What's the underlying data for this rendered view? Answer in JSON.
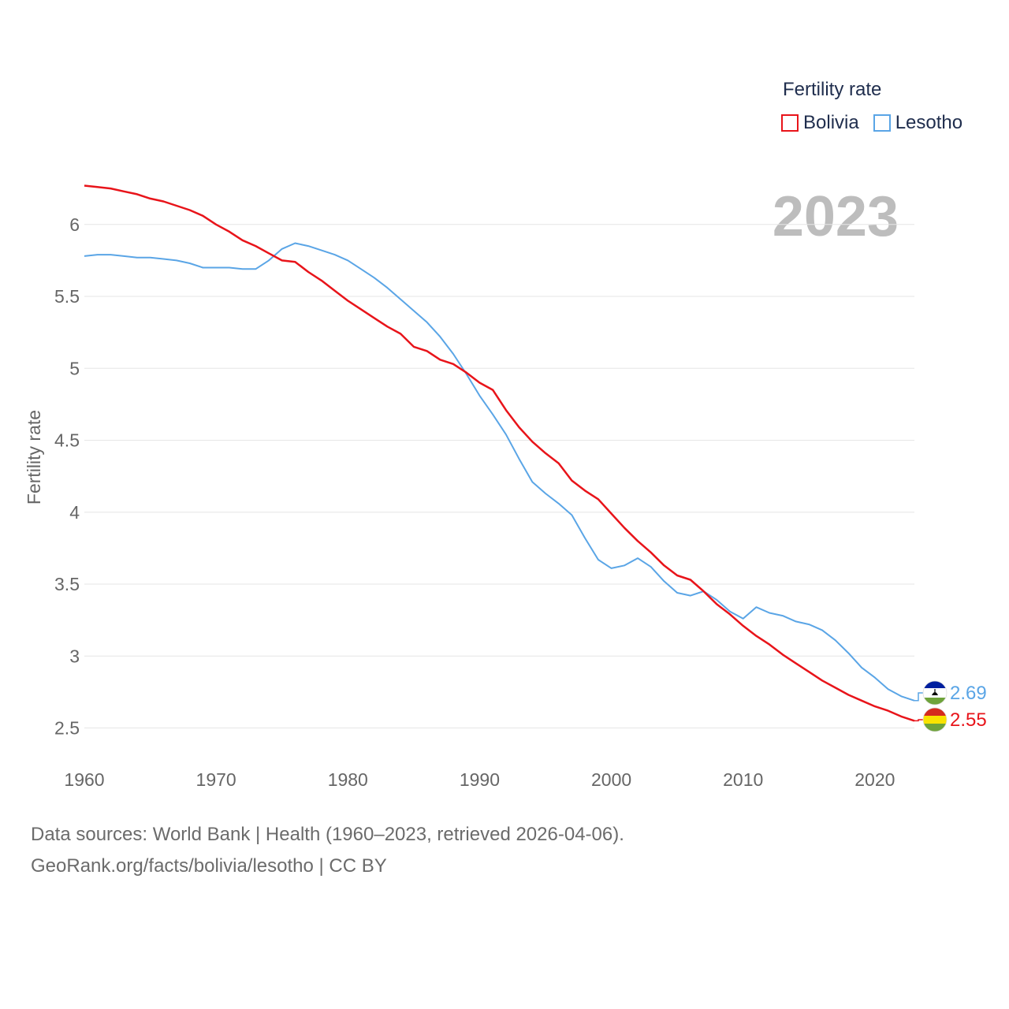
{
  "legend": {
    "title": "Fertility rate",
    "items": [
      {
        "name": "Bolivia",
        "color": "#e8141a"
      },
      {
        "name": "Lesotho",
        "color": "#5aa5e6"
      }
    ]
  },
  "year_label": "2023",
  "footer": {
    "line1": "Data sources: World Bank | Health (1960–2023, retrieved 2026-04-06).",
    "line2": "GeoRank.org/facts/bolivia/lesotho | CC BY"
  },
  "chart_data": {
    "type": "line",
    "title": "Fertility rate",
    "xlabel": "",
    "ylabel": "Fertility rate",
    "xlim": [
      1960,
      2023
    ],
    "ylim": [
      2.3,
      6.3
    ],
    "x_ticks": [
      1960,
      1970,
      1980,
      1990,
      2000,
      2010,
      2020
    ],
    "y_ticks": [
      2.5,
      3,
      3.5,
      4,
      4.5,
      5,
      5.5,
      6
    ],
    "y_tick_labels": [
      "2.5",
      "3",
      "3.5",
      "4",
      "4.5",
      "5",
      "5.5",
      "6"
    ],
    "grid": true,
    "legend_position": "top-right",
    "x": [
      1960,
      1961,
      1962,
      1963,
      1964,
      1965,
      1966,
      1967,
      1968,
      1969,
      1970,
      1971,
      1972,
      1973,
      1974,
      1975,
      1976,
      1977,
      1978,
      1979,
      1980,
      1981,
      1982,
      1983,
      1984,
      1985,
      1986,
      1987,
      1988,
      1989,
      1990,
      1991,
      1992,
      1993,
      1994,
      1995,
      1996,
      1997,
      1998,
      1999,
      2000,
      2001,
      2002,
      2003,
      2004,
      2005,
      2006,
      2007,
      2008,
      2009,
      2010,
      2011,
      2012,
      2013,
      2014,
      2015,
      2016,
      2017,
      2018,
      2019,
      2020,
      2021,
      2022,
      2023
    ],
    "series": [
      {
        "name": "Bolivia",
        "color": "#e8141a",
        "end_label": "2.55",
        "values": [
          6.27,
          6.26,
          6.25,
          6.23,
          6.21,
          6.18,
          6.16,
          6.13,
          6.1,
          6.06,
          6.0,
          5.95,
          5.89,
          5.85,
          5.8,
          5.75,
          5.74,
          5.67,
          5.61,
          5.54,
          5.47,
          5.41,
          5.35,
          5.29,
          5.24,
          5.15,
          5.12,
          5.06,
          5.03,
          4.97,
          4.9,
          4.85,
          4.71,
          4.59,
          4.49,
          4.41,
          4.34,
          4.22,
          4.15,
          4.09,
          3.99,
          3.89,
          3.8,
          3.72,
          3.63,
          3.56,
          3.53,
          3.45,
          3.36,
          3.29,
          3.21,
          3.14,
          3.08,
          3.01,
          2.95,
          2.89,
          2.83,
          2.78,
          2.73,
          2.69,
          2.65,
          2.62,
          2.58,
          2.55
        ]
      },
      {
        "name": "Lesotho",
        "color": "#5aa5e6",
        "end_label": "2.69",
        "values": [
          5.78,
          5.79,
          5.79,
          5.78,
          5.77,
          5.77,
          5.76,
          5.75,
          5.73,
          5.7,
          5.7,
          5.7,
          5.69,
          5.69,
          5.75,
          5.83,
          5.87,
          5.85,
          5.82,
          5.79,
          5.75,
          5.69,
          5.63,
          5.56,
          5.48,
          5.4,
          5.32,
          5.22,
          5.1,
          4.96,
          4.81,
          4.68,
          4.54,
          4.37,
          4.21,
          4.13,
          4.06,
          3.98,
          3.82,
          3.67,
          3.61,
          3.63,
          3.68,
          3.62,
          3.52,
          3.44,
          3.42,
          3.45,
          3.39,
          3.31,
          3.26,
          3.34,
          3.3,
          3.28,
          3.24,
          3.22,
          3.18,
          3.11,
          3.02,
          2.92,
          2.85,
          2.77,
          2.72,
          2.69
        ]
      }
    ]
  }
}
